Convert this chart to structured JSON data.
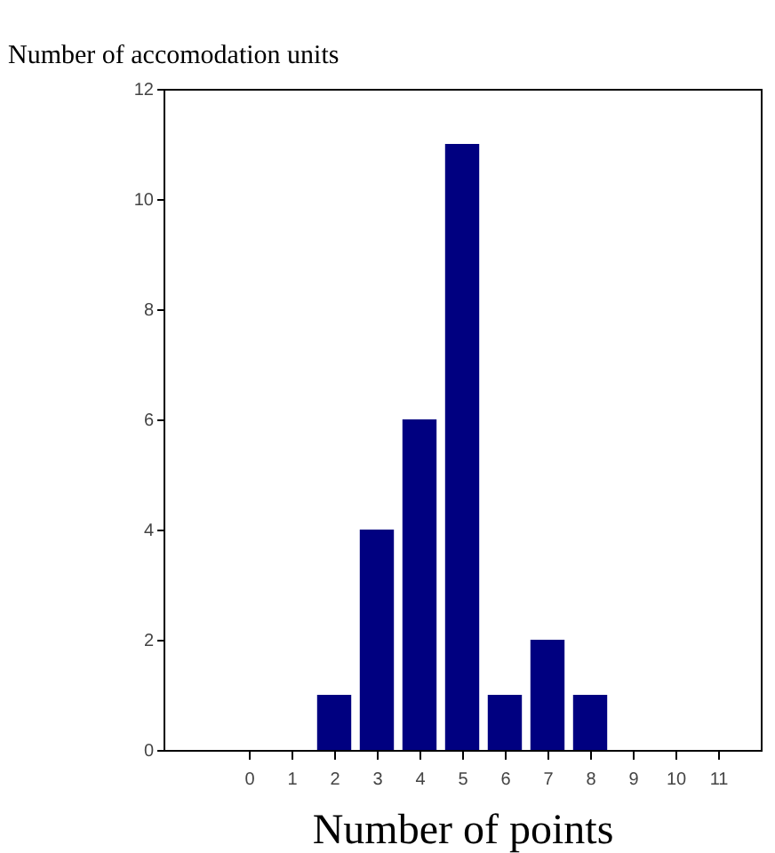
{
  "chart_data": {
    "type": "bar",
    "ylabel": "Number of accomodation units",
    "xlabel": "Number of points",
    "x": [
      2,
      3,
      4,
      5,
      6,
      7,
      8
    ],
    "values": [
      1,
      4,
      6,
      11,
      1,
      2,
      1
    ],
    "color": "#000080",
    "xlim": [
      -2,
      12
    ],
    "xticks": [
      0,
      1,
      2,
      3,
      4,
      5,
      6,
      7,
      8,
      9,
      10,
      11
    ],
    "ylim": [
      0,
      12
    ],
    "yticks": [
      0,
      2,
      4,
      6,
      8,
      10,
      12
    ],
    "grid": false
  }
}
